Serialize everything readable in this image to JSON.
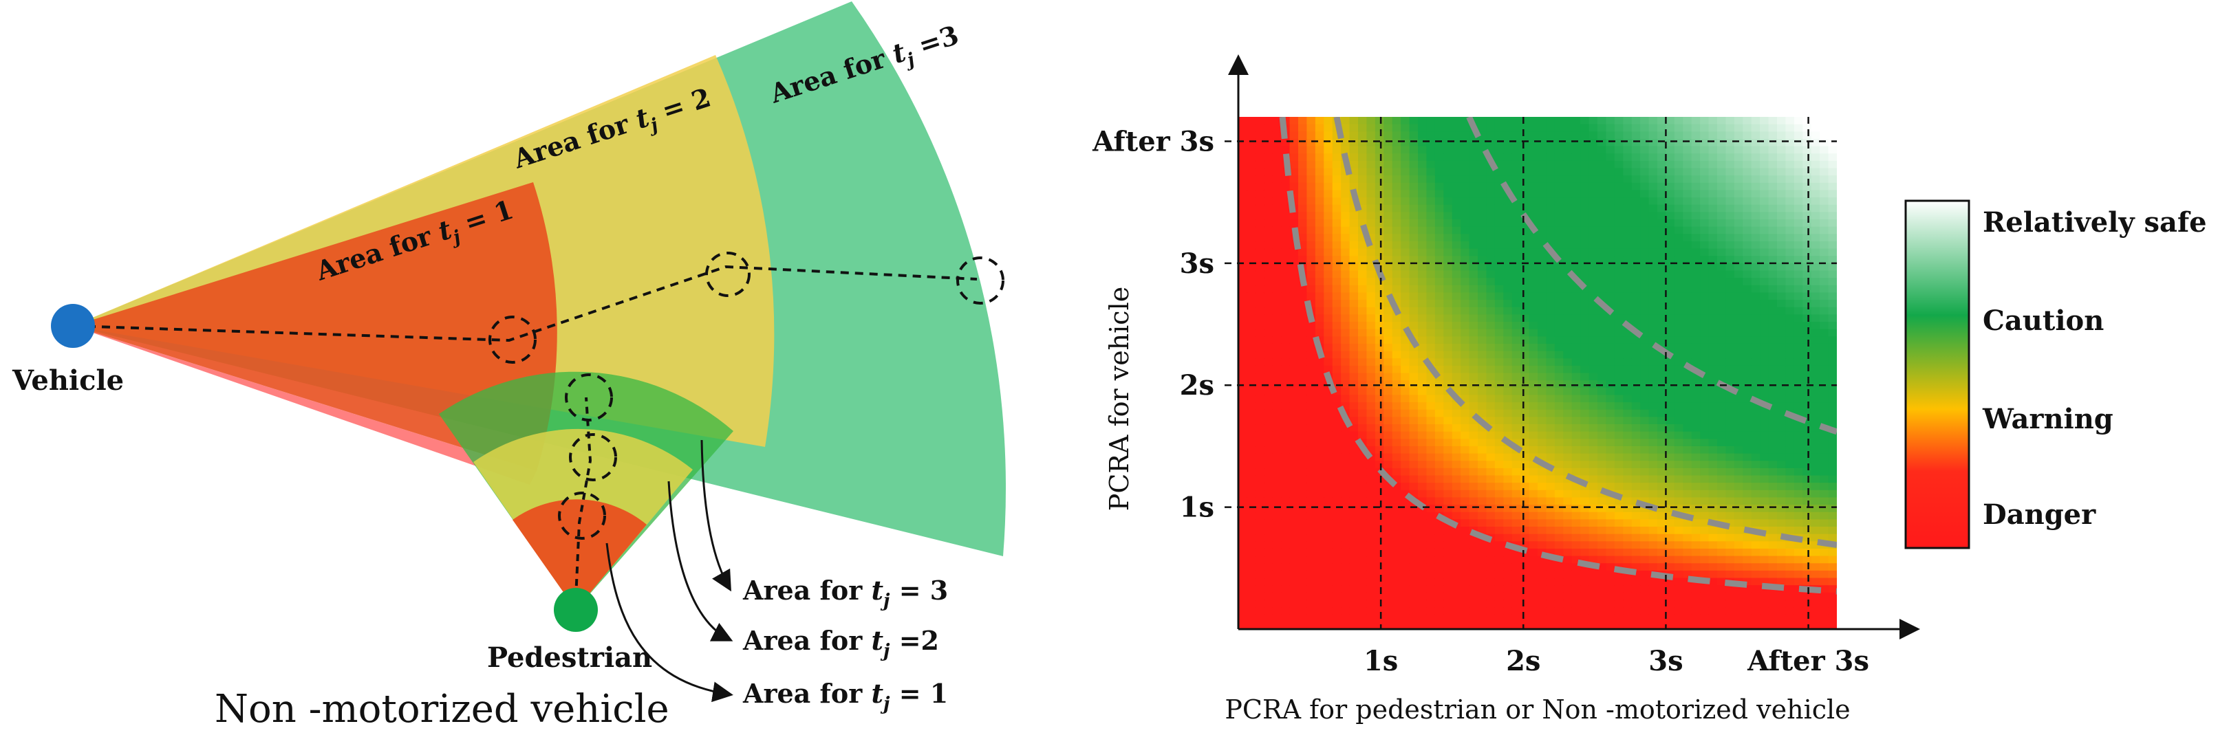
{
  "left_panel": {
    "vehicle_label": "Vehicle",
    "pedestrian_label": "Pedestrian",
    "non_motorized_label": "Non -motorized vehicle",
    "area_prefix": "Area for",
    "area_var": "t",
    "area_sub": "j",
    "vehicle_areas": [
      {
        "t": "1",
        "eq": "= 1",
        "color": "#e8501f"
      },
      {
        "t": "2",
        "eq": "= 2",
        "color": "#f2d04f"
      },
      {
        "t": "3",
        "eq": "=3",
        "color": "#5fcc8f"
      }
    ],
    "pedestrian_callouts": [
      {
        "t": "3",
        "eq": "= 3"
      },
      {
        "t": "2",
        "eq": "=2"
      },
      {
        "t": "1",
        "eq": "= 1"
      }
    ],
    "colors": {
      "vehicle_dot": "#1c72c4",
      "pedestrian_dot": "#10a84a",
      "red": "#e8501f",
      "yellow": "#f2d04f",
      "green": "#5fcc8f"
    }
  },
  "chart_data": {
    "type": "heatmap",
    "title": "",
    "xlabel": "PCRA for pedestrian or Non -motorized vehicle",
    "ylabel": "PCRA for vehicle",
    "x_ticks": [
      "1s",
      "2s",
      "3s",
      "After 3s"
    ],
    "y_ticks": [
      "1s",
      "2s",
      "3s",
      "After 3s"
    ],
    "x_range": [
      0,
      4.2
    ],
    "y_range": [
      0,
      4.2
    ],
    "risk_contours": [
      {
        "name": "danger-warning",
        "level": 1.3
      },
      {
        "name": "warning-caution",
        "level": 2.9
      },
      {
        "name": "caution-safe",
        "level": 6.8
      }
    ],
    "legend": {
      "position": "right",
      "entries": [
        "Relatively safe",
        "Caution",
        "Warning",
        "Danger"
      ],
      "colors": [
        "#ffffff",
        "#13a84a",
        "#ffc000",
        "#ff1a1a"
      ]
    },
    "grid": true
  }
}
